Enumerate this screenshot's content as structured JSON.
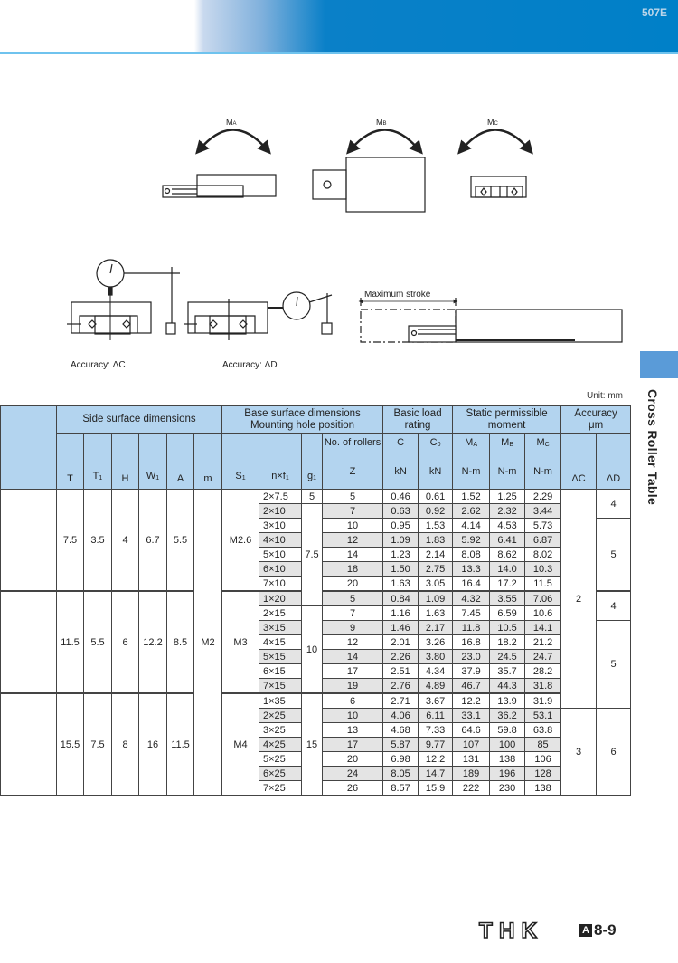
{
  "header": {
    "code": "507E"
  },
  "side_tab": {
    "title": "Cross Roller Table",
    "color": "#5a9bd8"
  },
  "diagrams": {
    "moments": [
      {
        "label": "M",
        "sub": "A"
      },
      {
        "label": "M",
        "sub": "B"
      },
      {
        "label": "M",
        "sub": "C"
      }
    ],
    "accuracy_c": "Accuracy: ΔC",
    "accuracy_d": "Accuracy: ΔD",
    "max_stroke": "Maximum stroke"
  },
  "table": {
    "unit": "Unit: mm",
    "group_headers": {
      "side": "Side surface dimensions",
      "base": [
        "Base surface dimensions",
        "Mounting hole position"
      ],
      "load": [
        "Basic load",
        "rating"
      ],
      "moment": [
        "Static permissible",
        "moment"
      ],
      "accuracy": [
        "Accuracy",
        "μm"
      ]
    },
    "col_headers": [
      {
        "main": "T",
        "sub": ""
      },
      {
        "main": "T",
        "sub": "1"
      },
      {
        "main": "H",
        "sub": ""
      },
      {
        "main": "W",
        "sub": "1"
      },
      {
        "main": "A",
        "sub": ""
      },
      {
        "main": "m",
        "sub": ""
      },
      {
        "main": "S",
        "sub": "1"
      },
      {
        "main": "n×f",
        "sub": "1"
      },
      {
        "main": "g",
        "sub": "1"
      },
      {
        "main": "No. of rollers",
        "sub": "",
        "unit": "Z"
      },
      {
        "main": "C",
        "sub": "",
        "unit": "kN"
      },
      {
        "main": "C",
        "sub": "0",
        "unit": "kN"
      },
      {
        "main": "M",
        "sub": "A",
        "unit": "N-m"
      },
      {
        "main": "M",
        "sub": "B",
        "unit": "N-m"
      },
      {
        "main": "M",
        "sub": "C",
        "unit": "N-m"
      },
      {
        "main": "ΔC",
        "sub": ""
      },
      {
        "main": "ΔD",
        "sub": ""
      }
    ],
    "side_groups": [
      {
        "span": 7,
        "T": "7.5",
        "T1": "3.5",
        "H": "4",
        "W1": "6.7",
        "A": "5.5"
      },
      {
        "span": 7,
        "T": "11.5",
        "T1": "5.5",
        "H": "6",
        "W1": "12.2",
        "A": "8.5"
      },
      {
        "span": 7,
        "T": "15.5",
        "T1": "7.5",
        "H": "8",
        "W1": "16",
        "A": "11.5"
      }
    ],
    "m_groups": [
      {
        "span": 21,
        "value": "M2"
      }
    ],
    "s1_groups": [
      {
        "span": 7,
        "value": "M2.6"
      },
      {
        "span": 7,
        "value": "M3"
      },
      {
        "span": 7,
        "value": "M4"
      }
    ],
    "g1_groups": [
      {
        "span": 1,
        "value": "5"
      },
      {
        "span": 7,
        "value": "7.5"
      },
      {
        "span": 6,
        "value": "10"
      },
      {
        "span": 7,
        "value": "15"
      }
    ],
    "dc_groups": [
      {
        "span": 15,
        "value": "2"
      },
      {
        "span": 6,
        "value": "3"
      }
    ],
    "dd_groups": [
      {
        "span": 2,
        "value": "4"
      },
      {
        "span": 5,
        "value": "5"
      },
      {
        "span": 2,
        "value": "4"
      },
      {
        "span": 6,
        "value": "5"
      },
      {
        "span": 6,
        "value": "6"
      }
    ],
    "rows": [
      {
        "nf": "2×7.5",
        "Z": "5",
        "C": "0.46",
        "C0": "0.61",
        "MA": "1.52",
        "MB": "1.25",
        "MC": "2.29"
      },
      {
        "nf": "2×10",
        "Z": "7",
        "C": "0.63",
        "C0": "0.92",
        "MA": "2.62",
        "MB": "2.32",
        "MC": "3.44"
      },
      {
        "nf": "3×10",
        "Z": "10",
        "C": "0.95",
        "C0": "1.53",
        "MA": "4.14",
        "MB": "4.53",
        "MC": "5.73"
      },
      {
        "nf": "4×10",
        "Z": "12",
        "C": "1.09",
        "C0": "1.83",
        "MA": "5.92",
        "MB": "6.41",
        "MC": "6.87"
      },
      {
        "nf": "5×10",
        "Z": "14",
        "C": "1.23",
        "C0": "2.14",
        "MA": "8.08",
        "MB": "8.62",
        "MC": "8.02"
      },
      {
        "nf": "6×10",
        "Z": "18",
        "C": "1.50",
        "C0": "2.75",
        "MA": "13.3",
        "MB": "14.0",
        "MC": "10.3"
      },
      {
        "nf": "7×10",
        "Z": "20",
        "C": "1.63",
        "C0": "3.05",
        "MA": "16.4",
        "MB": "17.2",
        "MC": "11.5"
      },
      {
        "nf": "1×20",
        "Z": "5",
        "C": "0.84",
        "C0": "1.09",
        "MA": "4.32",
        "MB": "3.55",
        "MC": "7.06"
      },
      {
        "nf": "2×15",
        "Z": "7",
        "C": "1.16",
        "C0": "1.63",
        "MA": "7.45",
        "MB": "6.59",
        "MC": "10.6"
      },
      {
        "nf": "3×15",
        "Z": "9",
        "C": "1.46",
        "C0": "2.17",
        "MA": "11.8",
        "MB": "10.5",
        "MC": "14.1"
      },
      {
        "nf": "4×15",
        "Z": "12",
        "C": "2.01",
        "C0": "3.26",
        "MA": "16.8",
        "MB": "18.2",
        "MC": "21.2"
      },
      {
        "nf": "5×15",
        "Z": "14",
        "C": "2.26",
        "C0": "3.80",
        "MA": "23.0",
        "MB": "24.5",
        "MC": "24.7"
      },
      {
        "nf": "6×15",
        "Z": "17",
        "C": "2.51",
        "C0": "4.34",
        "MA": "37.9",
        "MB": "35.7",
        "MC": "28.2"
      },
      {
        "nf": "7×15",
        "Z": "19",
        "C": "2.76",
        "C0": "4.89",
        "MA": "46.7",
        "MB": "44.3",
        "MC": "31.8"
      },
      {
        "nf": "1×35",
        "Z": "6",
        "C": "2.71",
        "C0": "3.67",
        "MA": "12.2",
        "MB": "13.9",
        "MC": "31.9"
      },
      {
        "nf": "2×25",
        "Z": "10",
        "C": "4.06",
        "C0": "6.11",
        "MA": "33.1",
        "MB": "36.2",
        "MC": "53.1"
      },
      {
        "nf": "3×25",
        "Z": "13",
        "C": "4.68",
        "C0": "7.33",
        "MA": "64.6",
        "MB": "59.8",
        "MC": "63.8"
      },
      {
        "nf": "4×25",
        "Z": "17",
        "C": "5.87",
        "C0": "9.77",
        "MA": "107",
        "MB": "100",
        "MC": "85"
      },
      {
        "nf": "5×25",
        "Z": "20",
        "C": "6.98",
        "C0": "12.2",
        "MA": "131",
        "MB": "138",
        "MC": "106"
      },
      {
        "nf": "6×25",
        "Z": "24",
        "C": "8.05",
        "C0": "14.7",
        "MA": "189",
        "MB": "196",
        "MC": "128"
      },
      {
        "nf": "7×25",
        "Z": "26",
        "C": "8.57",
        "C0": "15.9",
        "MA": "222",
        "MB": "230",
        "MC": "138"
      }
    ],
    "shade_color": "#e4e4e4",
    "header_color": "#b3d4ef"
  },
  "footer": {
    "logo": "THK",
    "section": "A",
    "page": "8-9"
  }
}
